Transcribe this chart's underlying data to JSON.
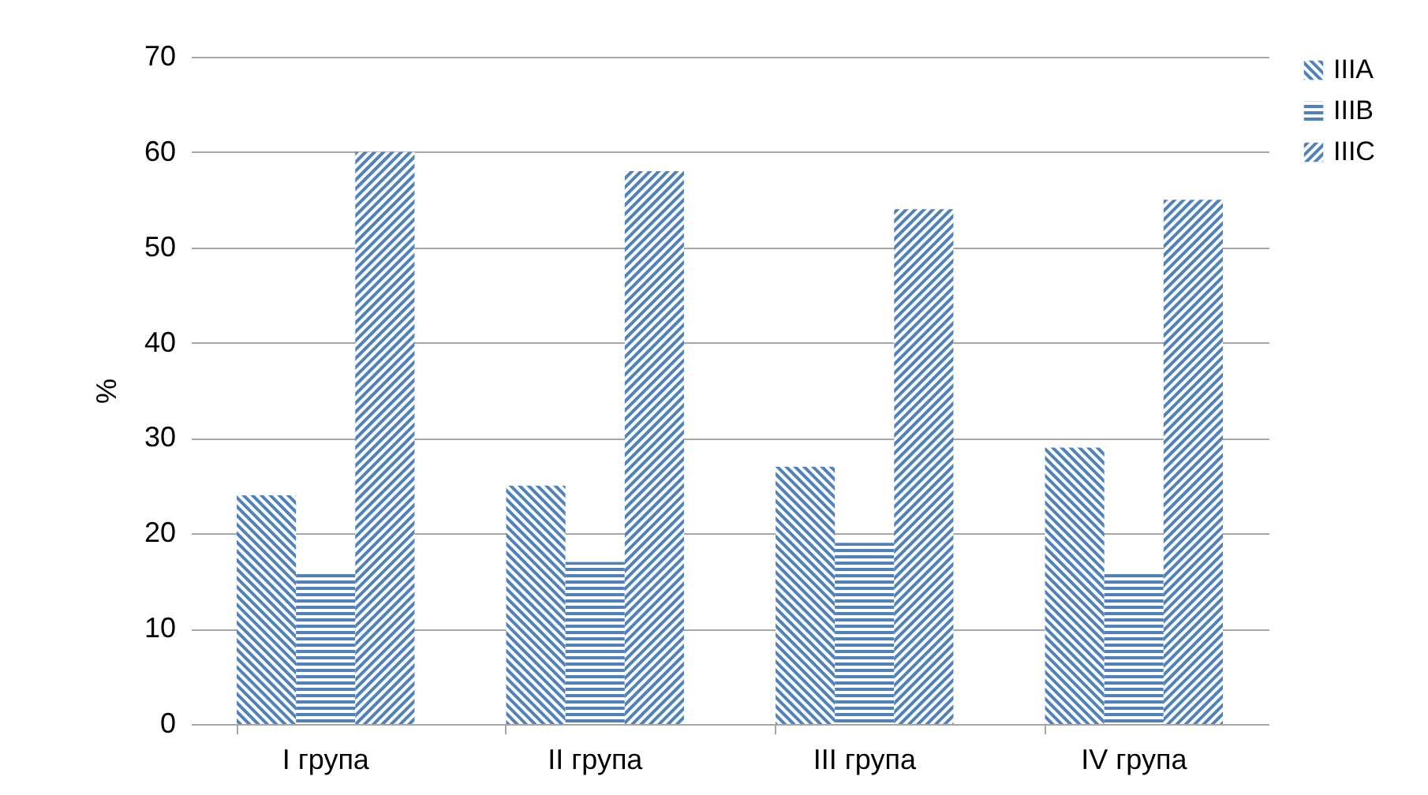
{
  "chart_data": {
    "type": "bar",
    "ylabel": "%",
    "categories": [
      "I група",
      "II група",
      "III група",
      "IV група"
    ],
    "series": [
      {
        "name": "IIIA",
        "color": "#4f81bd",
        "values": [
          24,
          25,
          27,
          29
        ]
      },
      {
        "name": "IIIB",
        "color": "#4f81bd",
        "values": [
          16,
          17,
          19,
          16
        ]
      },
      {
        "name": "IIIC",
        "color": "#4f81bd",
        "values": [
          60,
          58,
          54,
          55
        ]
      }
    ],
    "ylim": [
      0,
      70
    ],
    "yticks": [
      0,
      10,
      20,
      30,
      40,
      50,
      60,
      70
    ],
    "grid": "y",
    "legend": "right"
  }
}
